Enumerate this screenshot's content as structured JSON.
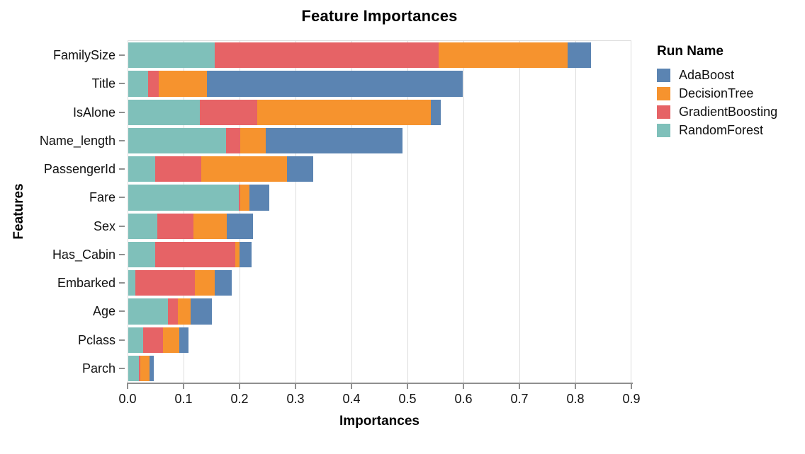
{
  "title": "Feature Importances",
  "legend": {
    "title": "Run Name",
    "entries": [
      "AdaBoost",
      "DecisionTree",
      "GradientBoosting",
      "RandomForest"
    ]
  },
  "colors": {
    "AdaBoost": "#5b84b2",
    "DecisionTree": "#f6932e",
    "GradientBoosting": "#e66366",
    "RandomForest": "#7fc0ba",
    "gridline": "#dddddd",
    "axis": "#8f8f8f"
  },
  "chart_data": {
    "type": "bar",
    "orientation": "horizontal",
    "stacked": true,
    "title": "Feature Importances",
    "xlabel": "Importances",
    "ylabel": "Features",
    "xlim": [
      0,
      0.9
    ],
    "xticks": [
      0.0,
      0.1,
      0.2,
      0.3,
      0.4,
      0.5,
      0.6,
      0.7,
      0.8,
      0.9
    ],
    "grid": true,
    "legend_position": "right",
    "legend_title": "Run Name",
    "categories": [
      "FamilySize",
      "Title",
      "IsAlone",
      "Name_length",
      "PassengerId",
      "Fare",
      "Sex",
      "Has_Cabin",
      "Embarked",
      "Age",
      "Pclass",
      "Parch"
    ],
    "stack_order": [
      "RandomForest",
      "GradientBoosting",
      "DecisionTree",
      "AdaBoost"
    ],
    "series": [
      {
        "name": "AdaBoost",
        "color": "#5b84b2",
        "values": [
          0.042,
          0.458,
          0.018,
          0.245,
          0.046,
          0.036,
          0.047,
          0.021,
          0.031,
          0.037,
          0.016,
          0.008
        ]
      },
      {
        "name": "DecisionTree",
        "color": "#f6932e",
        "values": [
          0.23,
          0.085,
          0.31,
          0.045,
          0.154,
          0.016,
          0.06,
          0.008,
          0.035,
          0.023,
          0.029,
          0.016
        ]
      },
      {
        "name": "GradientBoosting",
        "color": "#e66366",
        "values": [
          0.4,
          0.019,
          0.102,
          0.025,
          0.082,
          0.002,
          0.064,
          0.143,
          0.106,
          0.018,
          0.035,
          0.003
        ]
      },
      {
        "name": "RandomForest",
        "color": "#7fc0ba",
        "values": [
          0.155,
          0.036,
          0.128,
          0.175,
          0.048,
          0.198,
          0.052,
          0.048,
          0.013,
          0.071,
          0.027,
          0.019
        ]
      }
    ]
  }
}
